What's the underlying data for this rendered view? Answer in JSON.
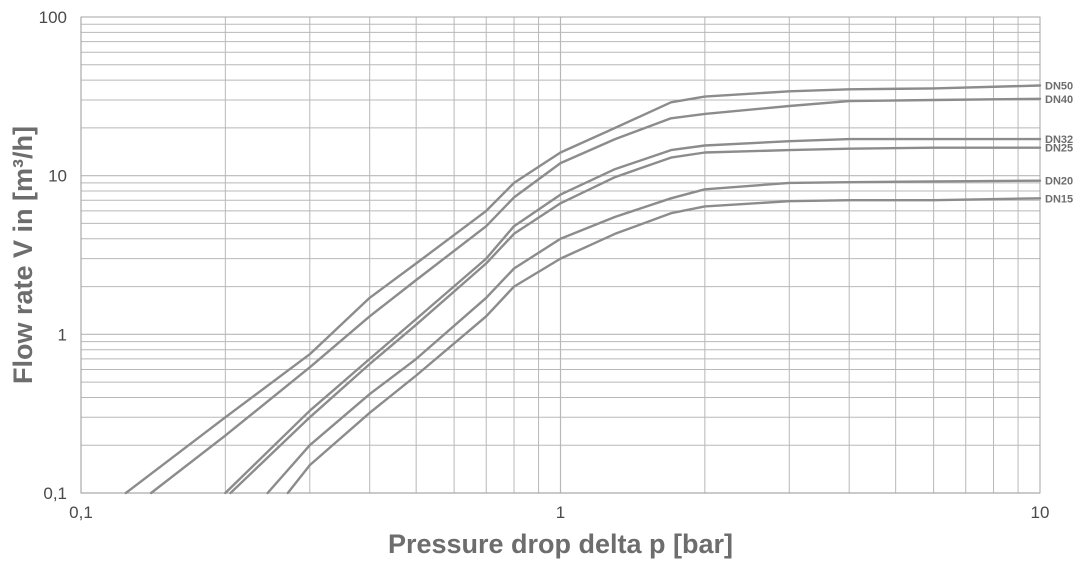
{
  "chart_data": {
    "type": "line",
    "xlabel": "Pressure drop delta p [bar]",
    "ylabel": "Flow rate V in [m³/h]",
    "xscale": "log",
    "yscale": "log",
    "xlim": [
      0.1,
      10
    ],
    "ylim": [
      0.1,
      100
    ],
    "grid": true,
    "legend": "right-end-labels",
    "x_tick_labels": [
      "0,1",
      "1",
      "10"
    ],
    "y_tick_labels": [
      "0,1",
      "1",
      "10",
      "100"
    ],
    "colors": {
      "line": "#8c8c8c",
      "grid": "#b8b8b8",
      "axis_text": "#4a4a4a",
      "title_text": "#6d6d6d"
    },
    "series": [
      {
        "name": "DN50",
        "points": [
          [
            0.124,
            0.1
          ],
          [
            0.2,
            0.3
          ],
          [
            0.3,
            0.75
          ],
          [
            0.4,
            1.7
          ],
          [
            0.5,
            2.8
          ],
          [
            0.7,
            6
          ],
          [
            0.8,
            9
          ],
          [
            1.0,
            14
          ],
          [
            1.3,
            20
          ],
          [
            1.7,
            29
          ],
          [
            2,
            31.5
          ],
          [
            3,
            34
          ],
          [
            4,
            35
          ],
          [
            6,
            35.5
          ],
          [
            10,
            37
          ]
        ]
      },
      {
        "name": "DN40",
        "points": [
          [
            0.14,
            0.1
          ],
          [
            0.2,
            0.23
          ],
          [
            0.3,
            0.62
          ],
          [
            0.4,
            1.3
          ],
          [
            0.5,
            2.2
          ],
          [
            0.7,
            4.8
          ],
          [
            0.8,
            7.3
          ],
          [
            1.0,
            12
          ],
          [
            1.3,
            17
          ],
          [
            1.7,
            23
          ],
          [
            2,
            24.5
          ],
          [
            3,
            27.5
          ],
          [
            4,
            29.5
          ],
          [
            6,
            30
          ],
          [
            10,
            30.5
          ]
        ]
      },
      {
        "name": "DN32",
        "points": [
          [
            0.2,
            0.1
          ],
          [
            0.3,
            0.33
          ],
          [
            0.4,
            0.7
          ],
          [
            0.5,
            1.25
          ],
          [
            0.7,
            3
          ],
          [
            0.8,
            4.8
          ],
          [
            1.0,
            7.6
          ],
          [
            1.3,
            11
          ],
          [
            1.7,
            14.5
          ],
          [
            2,
            15.5
          ],
          [
            3,
            16.5
          ],
          [
            4,
            17
          ],
          [
            6,
            17
          ],
          [
            10,
            17
          ]
        ]
      },
      {
        "name": "DN25",
        "points": [
          [
            0.205,
            0.1
          ],
          [
            0.3,
            0.3
          ],
          [
            0.4,
            0.65
          ],
          [
            0.5,
            1.15
          ],
          [
            0.7,
            2.8
          ],
          [
            0.8,
            4.3
          ],
          [
            1.0,
            6.7
          ],
          [
            1.3,
            9.8
          ],
          [
            1.7,
            13
          ],
          [
            2,
            14
          ],
          [
            3,
            14.5
          ],
          [
            4,
            14.8
          ],
          [
            6,
            15
          ],
          [
            10,
            15
          ]
        ]
      },
      {
        "name": "DN20",
        "points": [
          [
            0.245,
            0.1
          ],
          [
            0.3,
            0.2
          ],
          [
            0.4,
            0.42
          ],
          [
            0.5,
            0.7
          ],
          [
            0.7,
            1.7
          ],
          [
            0.8,
            2.6
          ],
          [
            1.0,
            4
          ],
          [
            1.3,
            5.5
          ],
          [
            1.7,
            7.2
          ],
          [
            2,
            8.2
          ],
          [
            3,
            9
          ],
          [
            4,
            9.1
          ],
          [
            6,
            9.2
          ],
          [
            10,
            9.3
          ]
        ]
      },
      {
        "name": "DN15",
        "points": [
          [
            0.27,
            0.1
          ],
          [
            0.3,
            0.15
          ],
          [
            0.4,
            0.32
          ],
          [
            0.5,
            0.55
          ],
          [
            0.7,
            1.3
          ],
          [
            0.8,
            2
          ],
          [
            1.0,
            3
          ],
          [
            1.3,
            4.3
          ],
          [
            1.7,
            5.8
          ],
          [
            2,
            6.4
          ],
          [
            3,
            6.9
          ],
          [
            4,
            7
          ],
          [
            6,
            7
          ],
          [
            10,
            7.2
          ]
        ]
      }
    ]
  }
}
